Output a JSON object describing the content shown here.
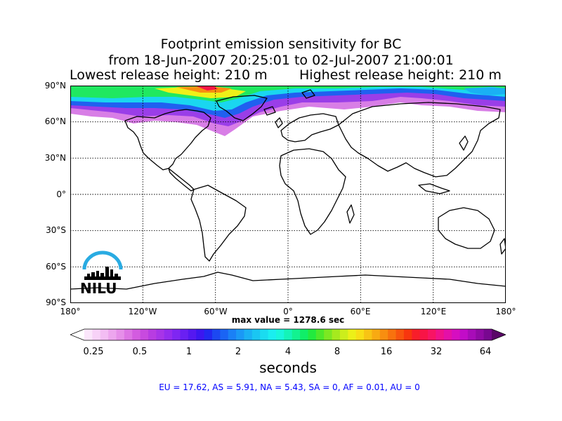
{
  "title": {
    "line1": "Footprint emission sensitivity for BC",
    "line2": "from 18-Jun-2007 20:25:01 to 02-Jul-2007 21:00:01",
    "lowest_release": "Lowest release height: 210 m",
    "highest_release": "Highest release height: 210 m"
  },
  "map": {
    "projection": "cylindrical",
    "lon_range": [
      -180,
      180
    ],
    "lat_range": [
      -90,
      90
    ],
    "lat_ticks": [
      {
        "value": 90,
        "label": "90°N"
      },
      {
        "value": 60,
        "label": "60°N"
      },
      {
        "value": 30,
        "label": "30°N"
      },
      {
        "value": 0,
        "label": "0°"
      },
      {
        "value": -30,
        "label": "30°S"
      },
      {
        "value": -60,
        "label": "60°S"
      },
      {
        "value": -90,
        "label": "90°S"
      }
    ],
    "lon_ticks": [
      {
        "value": -180,
        "label": "180°"
      },
      {
        "value": -120,
        "label": "120°W"
      },
      {
        "value": -60,
        "label": "60°W"
      },
      {
        "value": 0,
        "label": "0°"
      },
      {
        "value": 60,
        "label": "60°E"
      },
      {
        "value": 120,
        "label": "120°E"
      },
      {
        "value": 180,
        "label": "180°"
      }
    ],
    "grid": "dotted",
    "logo_text": "NILU",
    "logo_color": "#29abe2"
  },
  "max_value": "max value = 1278.6 sec",
  "colorbar": {
    "ticks": [
      "0.25",
      "0.5",
      "1",
      "2",
      "4",
      "8",
      "16",
      "32",
      "64"
    ],
    "unit": "seconds",
    "extend": "both",
    "colors": [
      "#fbe6fb",
      "#f7d2f7",
      "#f3bdf3",
      "#eda6ee",
      "#e68fe9",
      "#dd75e4",
      "#d35ce0",
      "#c84adf",
      "#b83ce2",
      "#a834e8",
      "#952cee",
      "#7f26f2",
      "#6a20f2",
      "#5518f0",
      "#3c16f0",
      "#2228f0",
      "#1c48f2",
      "#1a64f4",
      "#1a80f6",
      "#1a98f6",
      "#1ab0f4",
      "#1ac6f2",
      "#1adcf0",
      "#1aeef0",
      "#18f6dc",
      "#14f4b8",
      "#12f290",
      "#10ee68",
      "#22ea3e",
      "#4ee82a",
      "#7ce822",
      "#a6ea1e",
      "#ccee1c",
      "#ecf018",
      "#f8de16",
      "#f8c414",
      "#f8aa12",
      "#f88e10",
      "#f8720e",
      "#f8540e",
      "#f8360e",
      "#f81e2a",
      "#f81446",
      "#f81464",
      "#f0128a",
      "#e410a8",
      "#d60ec0",
      "#c20cc8",
      "#a80cb8",
      "#900aa4",
      "#780890"
    ]
  },
  "region_stats": "EU = 17.62,  AS = 5.91,  NA = 5.43,  SA = 0,  AF = 0.01,  AU = 0"
}
